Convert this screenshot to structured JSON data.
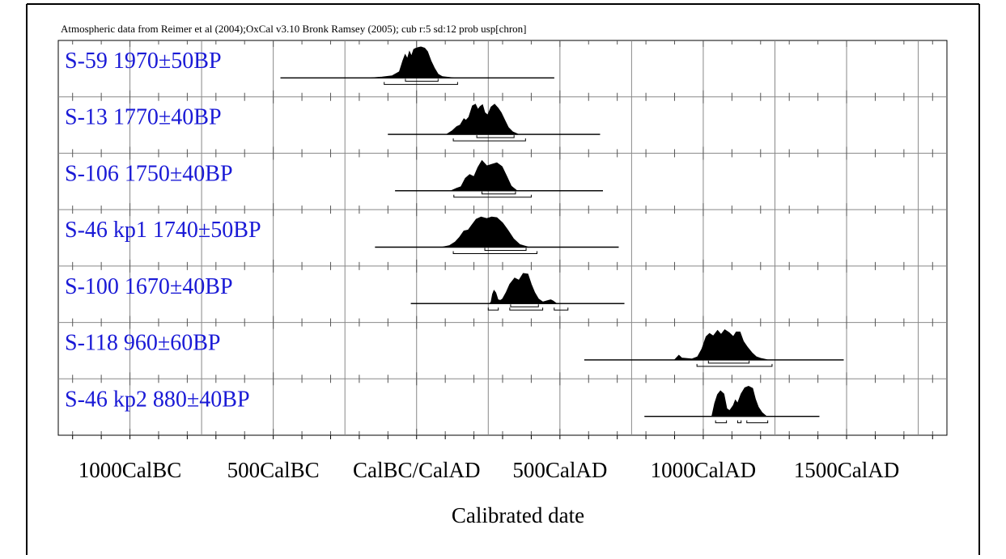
{
  "chart_data": {
    "type": "area",
    "title": "Atmospheric data from Reimer et al (2004);OxCal v3.10 Bronk Ramsey (2005); cub r:5 sd:12 prob usp[chron]",
    "xlabel": "Calibrated date",
    "x_unit": "calendar year (negative = BC)",
    "xlim": [
      -1250,
      1850
    ],
    "grid": true,
    "x_ticks": [
      {
        "value": -1000,
        "label": "1000CalBC"
      },
      {
        "value": -500,
        "label": "500CalBC"
      },
      {
        "value": 0,
        "label": "CalBC/CalAD"
      },
      {
        "value": 500,
        "label": "500CalAD"
      },
      {
        "value": 1000,
        "label": "1000CalAD"
      },
      {
        "value": 1500,
        "label": "1500CalAD"
      }
    ],
    "series": [
      {
        "name": "S-59  1970±50BP",
        "baseline": [
          -475,
          480
        ],
        "curve": [
          [
            -475,
            0
          ],
          [
            -160,
            0
          ],
          [
            -120,
            0.03
          ],
          [
            -85,
            0.07
          ],
          [
            -60,
            0.2
          ],
          [
            -48,
            0.55
          ],
          [
            -40,
            0.75
          ],
          [
            -32,
            0.62
          ],
          [
            -25,
            0.85
          ],
          [
            -18,
            0.7
          ],
          [
            -10,
            0.92
          ],
          [
            0,
            0.97
          ],
          [
            15,
            1
          ],
          [
            28,
            0.96
          ],
          [
            38,
            0.85
          ],
          [
            50,
            0.55
          ],
          [
            62,
            0.32
          ],
          [
            75,
            0.12
          ],
          [
            90,
            0.04
          ],
          [
            130,
            0
          ],
          [
            480,
            0
          ]
        ],
        "ranges": [
          [
            -113,
            143
          ]
        ],
        "ranges_inner": [
          [
            -39,
            75
          ]
        ]
      },
      {
        "name": "S-13  1770±40BP",
        "baseline": [
          -100,
          640
        ],
        "curve": [
          [
            -100,
            0
          ],
          [
            105,
            0
          ],
          [
            125,
            0.12
          ],
          [
            140,
            0.25
          ],
          [
            152,
            0.3
          ],
          [
            165,
            0.5
          ],
          [
            172,
            0.45
          ],
          [
            182,
            0.55
          ],
          [
            195,
            0.92
          ],
          [
            205,
            0.97
          ],
          [
            214,
            0.8
          ],
          [
            222,
            0.9
          ],
          [
            230,
            0.95
          ],
          [
            238,
            0.7
          ],
          [
            248,
            0.62
          ],
          [
            260,
            0.88
          ],
          [
            272,
            0.97
          ],
          [
            284,
            0.85
          ],
          [
            295,
            0.7
          ],
          [
            308,
            0.45
          ],
          [
            320,
            0.22
          ],
          [
            335,
            0.08
          ],
          [
            355,
            0
          ],
          [
            640,
            0
          ]
        ],
        "ranges": [
          [
            128,
            380
          ]
        ],
        "ranges_inner": [
          [
            210,
            340
          ]
        ]
      },
      {
        "name": "S-106  1750±40BP",
        "baseline": [
          -75,
          650
        ],
        "curve": [
          [
            -75,
            0
          ],
          [
            120,
            0
          ],
          [
            140,
            0.08
          ],
          [
            155,
            0.13
          ],
          [
            170,
            0.4
          ],
          [
            185,
            0.52
          ],
          [
            200,
            0.45
          ],
          [
            214,
            0.75
          ],
          [
            228,
            0.97
          ],
          [
            245,
            0.8
          ],
          [
            262,
            0.85
          ],
          [
            280,
            0.9
          ],
          [
            298,
            0.78
          ],
          [
            315,
            0.45
          ],
          [
            330,
            0.15
          ],
          [
            350,
            0
          ],
          [
            650,
            0
          ]
        ],
        "ranges": [
          [
            130,
            400
          ]
        ],
        "ranges_inner": [
          [
            228,
            345
          ]
        ]
      },
      {
        "name": "S-46 kp1  1740±50BP",
        "baseline": [
          -145,
          705
        ],
        "curve": [
          [
            -145,
            0
          ],
          [
            90,
            0
          ],
          [
            115,
            0.05
          ],
          [
            135,
            0.17
          ],
          [
            150,
            0.32
          ],
          [
            165,
            0.52
          ],
          [
            180,
            0.55
          ],
          [
            192,
            0.7
          ],
          [
            208,
            0.9
          ],
          [
            225,
            0.97
          ],
          [
            245,
            0.92
          ],
          [
            262,
            0.97
          ],
          [
            280,
            0.95
          ],
          [
            300,
            0.78
          ],
          [
            318,
            0.55
          ],
          [
            338,
            0.27
          ],
          [
            360,
            0.08
          ],
          [
            390,
            0
          ],
          [
            705,
            0
          ]
        ],
        "ranges": [
          [
            128,
            420
          ]
        ],
        "ranges_inner": [
          [
            238,
            382
          ]
        ]
      },
      {
        "name": "S-100  1670±40BP",
        "baseline": [
          -20,
          725
        ],
        "curve": [
          [
            -20,
            0
          ],
          [
            255,
            0
          ],
          [
            260,
            0.05
          ],
          [
            265,
            0.3
          ],
          [
            270,
            0.42
          ],
          [
            276,
            0.35
          ],
          [
            284,
            0.12
          ],
          [
            292,
            0.1
          ],
          [
            300,
            0.15
          ],
          [
            312,
            0.35
          ],
          [
            325,
            0.62
          ],
          [
            342,
            0.82
          ],
          [
            357,
            0.75
          ],
          [
            372,
            0.97
          ],
          [
            388,
            0.95
          ],
          [
            400,
            0.62
          ],
          [
            412,
            0.35
          ],
          [
            425,
            0.15
          ],
          [
            440,
            0.05
          ],
          [
            460,
            0.1
          ],
          [
            468,
            0.12
          ],
          [
            476,
            0.08
          ],
          [
            488,
            0
          ],
          [
            725,
            0
          ]
        ],
        "ranges": [
          [
            250,
            285
          ],
          [
            325,
            440
          ],
          [
            480,
            528
          ]
        ],
        "ranges_inner": [
          [
            328,
            425
          ]
        ]
      },
      {
        "name": "S-118  960±60BP",
        "baseline": [
          585,
          1490
        ],
        "curve": [
          [
            585,
            0
          ],
          [
            900,
            0
          ],
          [
            915,
            0.15
          ],
          [
            925,
            0.06
          ],
          [
            960,
            0.03
          ],
          [
            980,
            0.1
          ],
          [
            995,
            0.35
          ],
          [
            1010,
            0.75
          ],
          [
            1022,
            0.85
          ],
          [
            1035,
            0.77
          ],
          [
            1050,
            0.95
          ],
          [
            1062,
            0.82
          ],
          [
            1075,
            0.97
          ],
          [
            1090,
            0.88
          ],
          [
            1105,
            0.75
          ],
          [
            1115,
            0.9
          ],
          [
            1128,
            0.9
          ],
          [
            1140,
            0.6
          ],
          [
            1155,
            0.4
          ],
          [
            1170,
            0.23
          ],
          [
            1185,
            0.1
          ],
          [
            1200,
            0.05
          ],
          [
            1225,
            0
          ],
          [
            1490,
            0
          ]
        ],
        "ranges": [
          [
            978,
            1240
          ]
        ],
        "ranges_inner": [
          [
            1018,
            1160
          ]
        ]
      },
      {
        "name": "S-46 kp2  880±40BP",
        "baseline": [
          795,
          1405
        ],
        "curve": [
          [
            795,
            0
          ],
          [
            1030,
            0
          ],
          [
            1040,
            0.42
          ],
          [
            1050,
            0.7
          ],
          [
            1060,
            0.82
          ],
          [
            1072,
            0.72
          ],
          [
            1082,
            0.25
          ],
          [
            1092,
            0.18
          ],
          [
            1105,
            0.35
          ],
          [
            1112,
            0.52
          ],
          [
            1120,
            0.42
          ],
          [
            1132,
            0.72
          ],
          [
            1145,
            0.92
          ],
          [
            1158,
            0.97
          ],
          [
            1172,
            0.9
          ],
          [
            1182,
            0.55
          ],
          [
            1192,
            0.3
          ],
          [
            1205,
            0.12
          ],
          [
            1220,
            0
          ],
          [
            1405,
            0
          ]
        ],
        "ranges": [
          [
            1043,
            1081
          ],
          [
            1120,
            1132
          ],
          [
            1152,
            1225
          ]
        ],
        "ranges_inner": []
      }
    ]
  }
}
